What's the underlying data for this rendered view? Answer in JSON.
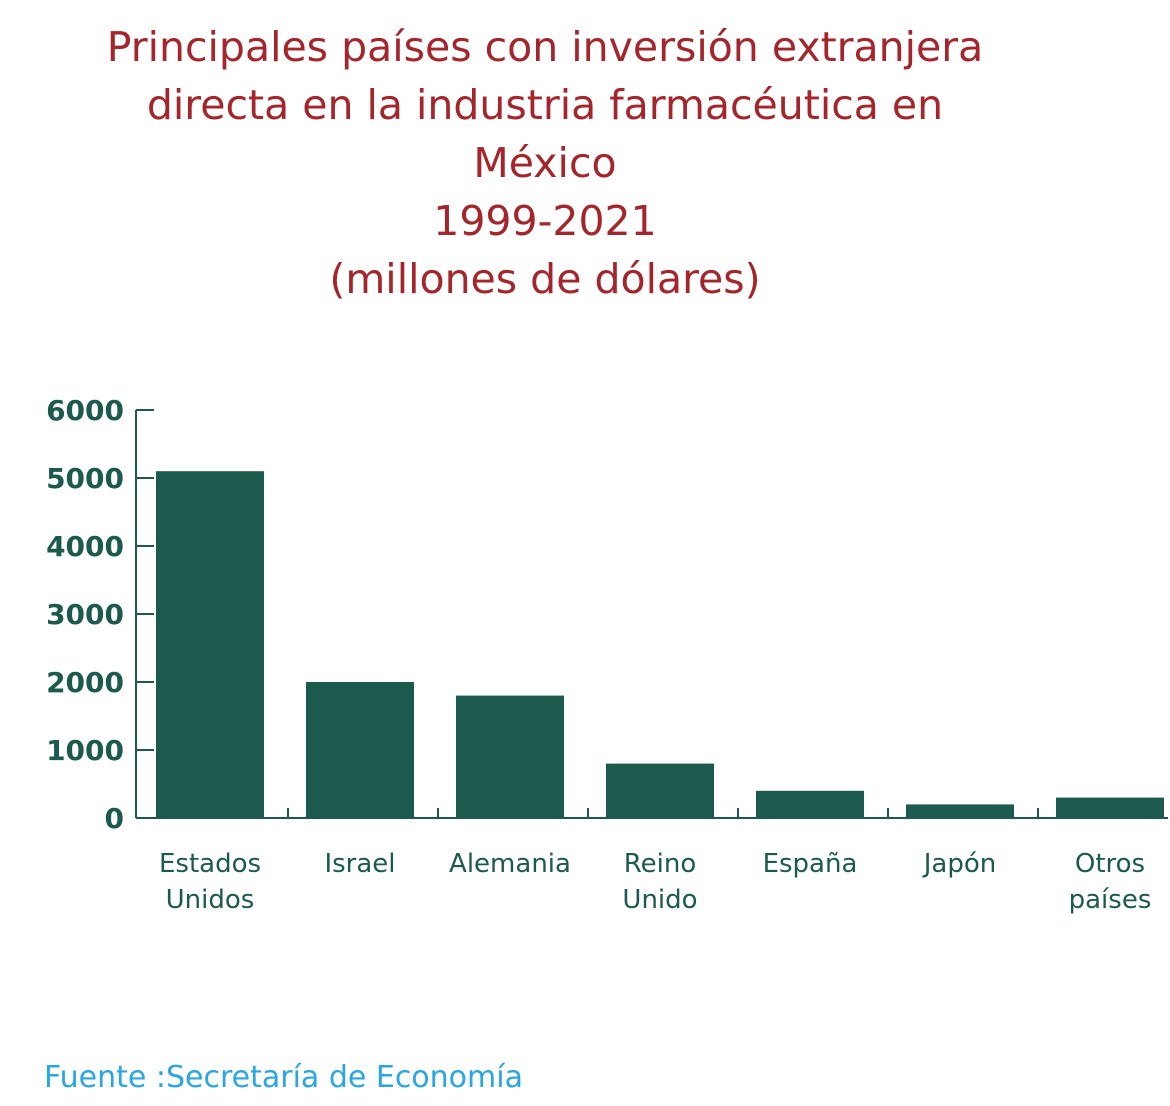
{
  "title_lines": [
    "Principales países con inversión extranjera",
    "directa en la industria farmacéutica en",
    "México",
    "1999-2021",
    "(millones de dólares)"
  ],
  "source": "Fuente :Secretaría de Economía",
  "colors": {
    "title": "#a4262c",
    "bar": "#1c5a4e",
    "axis_text": "#1c5a4e",
    "source": "#2aa6e0"
  },
  "chart_data": {
    "type": "bar",
    "title": "Principales países con inversión extranjera directa en la industria farmacéutica en México 1999-2021 (millones de dólares)",
    "categories": [
      [
        "Estados",
        "Unidos"
      ],
      [
        "Israel"
      ],
      [
        "Alemania"
      ],
      [
        "Reino",
        "Unido"
      ],
      [
        "España"
      ],
      [
        "Japón"
      ],
      [
        "Otros",
        "países"
      ]
    ],
    "values": [
      5100,
      2000,
      1800,
      800,
      400,
      200,
      300
    ],
    "ylim": [
      0,
      6000
    ],
    "yticks": [
      0,
      1000,
      2000,
      3000,
      4000,
      5000,
      6000
    ],
    "xlabel": "",
    "ylabel": "",
    "grid": false,
    "legend": "none"
  }
}
